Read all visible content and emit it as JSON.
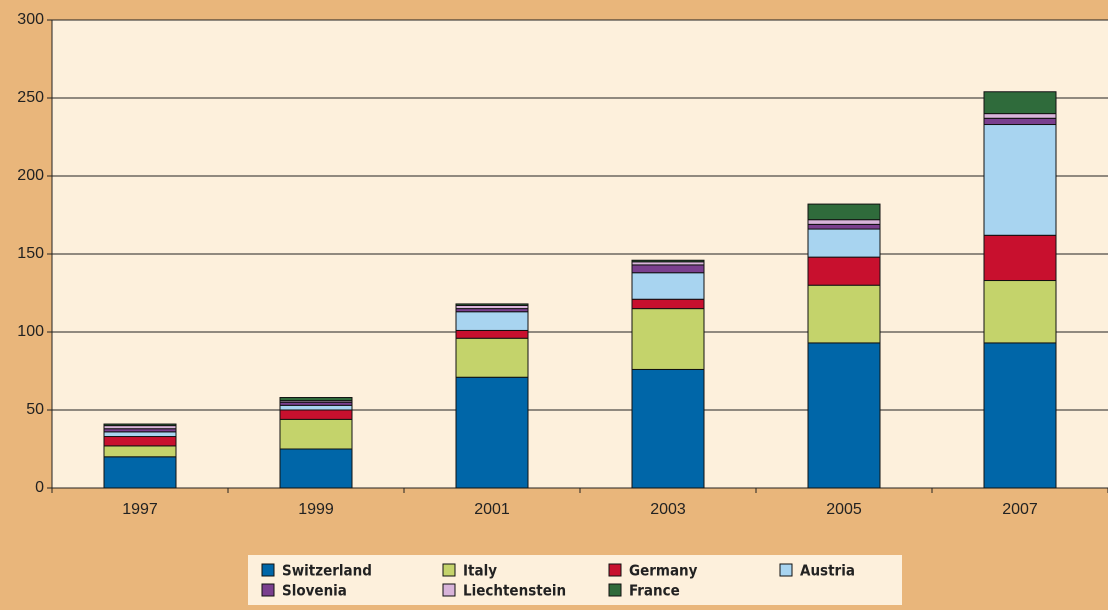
{
  "chart_data": {
    "type": "stacked_bar",
    "categories": [
      "1997",
      "1999",
      "2001",
      "2003",
      "2005",
      "2007"
    ],
    "series": [
      {
        "name": "Switzerland",
        "color": "#0066a8",
        "values": [
          20,
          25,
          71,
          76,
          93,
          93
        ]
      },
      {
        "name": "Italy",
        "color": "#c4d36b",
        "values": [
          7,
          19,
          25,
          39,
          37,
          40
        ]
      },
      {
        "name": "Germany",
        "color": "#c8102e",
        "values": [
          6,
          6,
          5,
          6,
          18,
          29
        ]
      },
      {
        "name": "Austria",
        "color": "#a8d4f0",
        "values": [
          3,
          3,
          12,
          17,
          18,
          71
        ]
      },
      {
        "name": "Slovenia",
        "color": "#7a3f8e",
        "values": [
          2,
          2,
          2,
          5,
          3,
          4
        ]
      },
      {
        "name": "Liechtenstein",
        "color": "#d8b4da",
        "values": [
          2,
          1,
          2,
          2,
          3,
          3
        ]
      },
      {
        "name": "France",
        "color": "#2f6b3b",
        "values": [
          1,
          2,
          1,
          1,
          10,
          14
        ]
      }
    ],
    "ylim": [
      0,
      300
    ],
    "yticks": [
      0,
      50,
      100,
      150,
      200,
      250,
      300
    ],
    "grid": true
  }
}
